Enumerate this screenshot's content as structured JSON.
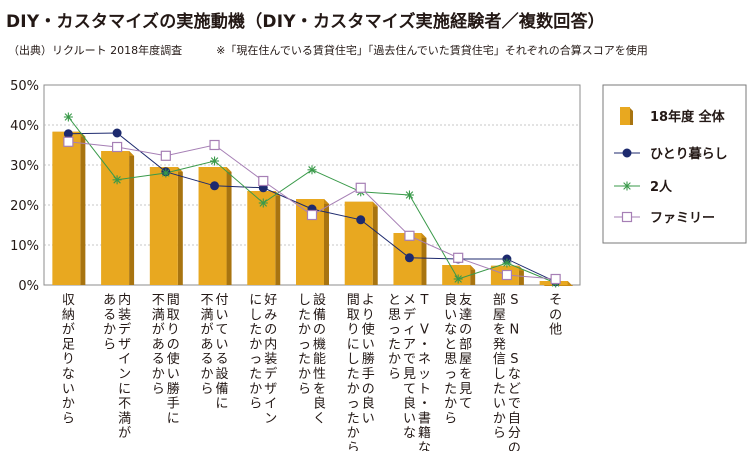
{
  "title": "DIY・カスタマイズの実施動機（DIY・カスタマイズ実施経験者／複数回答）",
  "note": {
    "source": "（出典）リクルート 2018年度調査",
    "remark": "※「現在住んでいる賃貸住宅」「過去住んでいた賃貸住宅」それぞれの合算スコアを使用"
  },
  "chart_data": {
    "type": "bar",
    "title": "DIY・カスタマイズの実施動機（DIY・カスタマイズ実施経験者／複数回答）",
    "xlabel": "",
    "ylabel": "",
    "ylim": [
      0,
      50
    ],
    "yticks": [
      "0%",
      "10%",
      "20%",
      "30%",
      "40%",
      "50%"
    ],
    "ytick_values": [
      0,
      10,
      20,
      30,
      40,
      50
    ],
    "grid": true,
    "legend_position": "right",
    "categories": [
      [
        "収納が足りないから"
      ],
      [
        "内装デザインに不満が",
        "あるから"
      ],
      [
        "間取りの使い勝手に",
        "不満があるから"
      ],
      [
        "付いている設備に",
        "不満があるから"
      ],
      [
        "好みの内装デザイン",
        "にしたかったから"
      ],
      [
        "設備の機能性を良く",
        "したかったから"
      ],
      [
        "より使い勝手の良い",
        "間取りにしたかったから"
      ],
      [
        "T V・ネット・書籍など",
        "メディアで見て良いな",
        "と思ったから"
      ],
      [
        "友達の部屋を見て",
        "良いなと思ったから"
      ],
      [
        "S N Sなどで自分の",
        "部屋を発信したいから"
      ],
      [
        "その他"
      ]
    ],
    "series": [
      {
        "name": "18年度 全体",
        "kind": "bar",
        "color": "#e8a820",
        "values": [
          38.3,
          33.5,
          29.5,
          29.5,
          23.5,
          21.5,
          20.8,
          13.0,
          5.0,
          4.8,
          1.0
        ]
      },
      {
        "name": "ひとり暮らし",
        "kind": "line",
        "marker": "circle",
        "color": "#1d2a6e",
        "values": [
          37.8,
          38.0,
          28.3,
          24.8,
          24.3,
          19.0,
          16.3,
          6.8,
          6.5,
          6.5,
          0.8
        ]
      },
      {
        "name": "2人",
        "kind": "line",
        "marker": "star",
        "color": "#3a9a4a",
        "values": [
          42.0,
          26.3,
          28.0,
          31.0,
          20.5,
          28.8,
          23.3,
          22.5,
          1.5,
          5.5,
          0.5
        ]
      },
      {
        "name": "ファミリー",
        "kind": "line",
        "marker": "square",
        "color": "#a67fb5",
        "values": [
          35.8,
          34.5,
          32.3,
          35.0,
          26.0,
          17.5,
          24.3,
          12.3,
          6.8,
          2.5,
          1.5
        ]
      }
    ]
  }
}
